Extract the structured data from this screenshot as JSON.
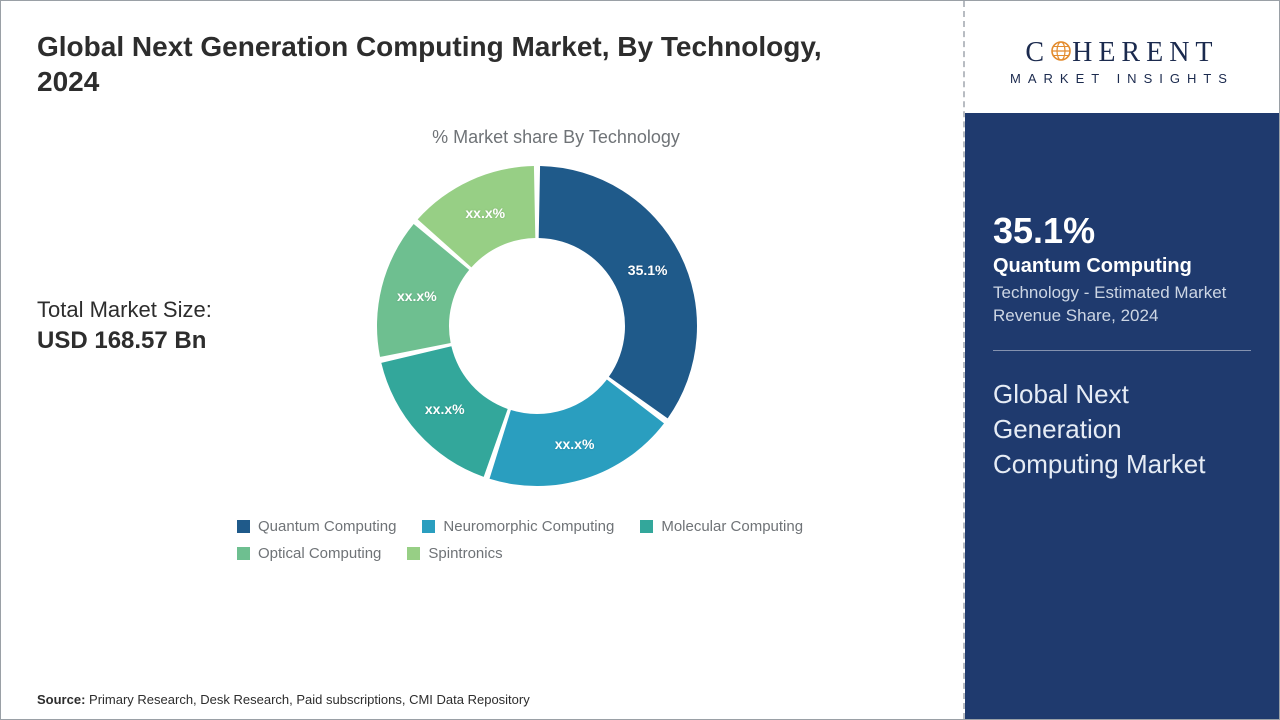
{
  "title": "Global Next Generation Computing Market, By Technology, 2024",
  "chart_title": "% Market share By Technology",
  "market_size": {
    "label": "Total Market Size:",
    "value": "USD 168.57 Bn"
  },
  "donut": {
    "type": "pie",
    "background_color": "#ffffff",
    "inner_radius_ratio": 0.55,
    "outer_radius": 160,
    "gap_deg": 2.2,
    "start_angle_deg": -90,
    "label_fontsize": 14,
    "label_color": "#ffffff",
    "slices": [
      {
        "name": "Quantum Computing",
        "value": 35.1,
        "label": "35.1%",
        "color": "#1f5a8a",
        "label_color": "#ffffff"
      },
      {
        "name": "Neuromorphic Computing",
        "value": 20.0,
        "label": "xx.x%",
        "color": "#2a9ebf",
        "label_color": "#ffffff"
      },
      {
        "name": "Molecular Computing",
        "value": 16.5,
        "label": "xx.x%",
        "color": "#33a79b",
        "label_color": "#ffffff"
      },
      {
        "name": "Optical Computing",
        "value": 14.7,
        "label": "xx.x%",
        "color": "#6ebf90",
        "label_color": "#ffffff"
      },
      {
        "name": "Spintronics",
        "value": 13.7,
        "label": "xx.x%",
        "color": "#97cf85",
        "label_color": "#ffffff"
      }
    ]
  },
  "legend": {
    "fontsize": 15,
    "text_color": "#6f7377",
    "swatch_size": 13,
    "items": [
      {
        "label": "Quantum Computing",
        "color": "#1f5a8a"
      },
      {
        "label": "Neuromorphic Computing",
        "color": "#2a9ebf"
      },
      {
        "label": "Molecular Computing",
        "color": "#33a79b"
      },
      {
        "label": "Optical Computing",
        "color": "#6ebf90"
      },
      {
        "label": "Spintronics",
        "color": "#97cf85"
      }
    ]
  },
  "source": {
    "prefix": "Source:",
    "text": " Primary Research, Desk Research, Paid subscriptions, CMI Data Repository"
  },
  "logo": {
    "top": "C",
    "oh_color": "#e38b2d",
    "rest": "HERENT",
    "bottom": "MARKET INSIGHTS"
  },
  "panel": {
    "background_color": "#1f3a6e",
    "big": "35.1%",
    "tech": "Quantum Computing",
    "desc": "Technology - Estimated Market Revenue Share, 2024",
    "market": "Global Next Generation Computing Market"
  }
}
